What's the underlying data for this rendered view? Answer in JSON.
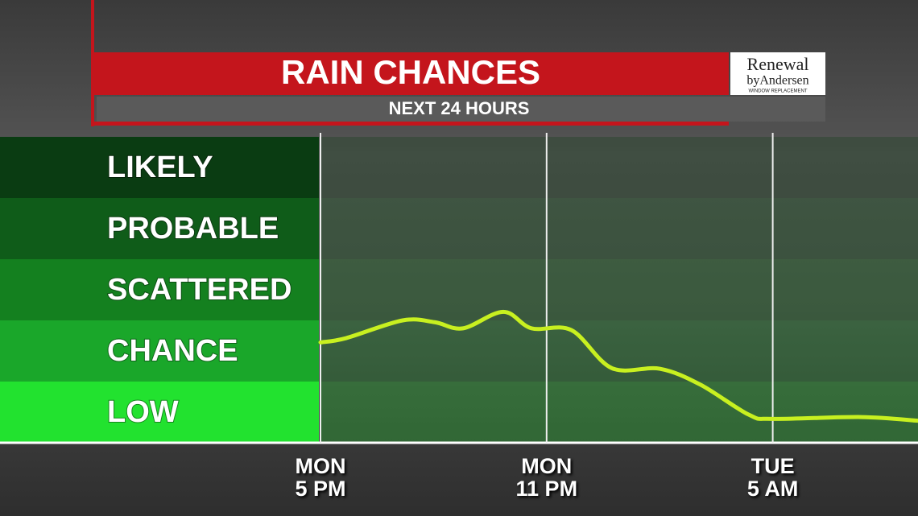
{
  "chart_data": {
    "type": "line",
    "title": "RAIN CHANCES",
    "subtitle": "NEXT 24 HOURS",
    "xlim": [
      0,
      16
    ],
    "xticks": [
      {
        "value": 0,
        "label": "MON\n5 PM"
      },
      {
        "value": 6,
        "label": "MON\n11 PM"
      },
      {
        "value": 12,
        "label": "TUE\n5 AM"
      }
    ],
    "ylim": [
      0,
      5
    ],
    "yticks": [
      {
        "value": 0.5,
        "label": "LOW"
      },
      {
        "value": 1.5,
        "label": "CHANCE"
      },
      {
        "value": 2.5,
        "label": "SCATTERED"
      },
      {
        "value": 3.5,
        "label": "PROBABLE"
      },
      {
        "value": 4.5,
        "label": "LIKELY"
      }
    ],
    "band_colors": [
      "#22e22f",
      "#1aa72a",
      "#14801f",
      "#0f5c19",
      "#0a3c12"
    ],
    "series": [
      {
        "color": "#c8f020",
        "x": [
          0,
          0.68,
          2.18,
          3.03,
          3.78,
          4.85,
          5.6,
          6.66,
          7.73,
          9.0,
          10.08,
          11.36,
          12,
          14.35,
          15.85
        ],
        "values": [
          1.64,
          1.71,
          2.0,
          1.97,
          1.87,
          2.14,
          1.87,
          1.84,
          1.22,
          1.21,
          0.95,
          0.46,
          0.39,
          0.42,
          0.36
        ]
      }
    ]
  },
  "sponsor": {
    "line1": "Renewal",
    "line2": "byAndersen",
    "tagline": "WINDOW REPLACEMENT"
  }
}
